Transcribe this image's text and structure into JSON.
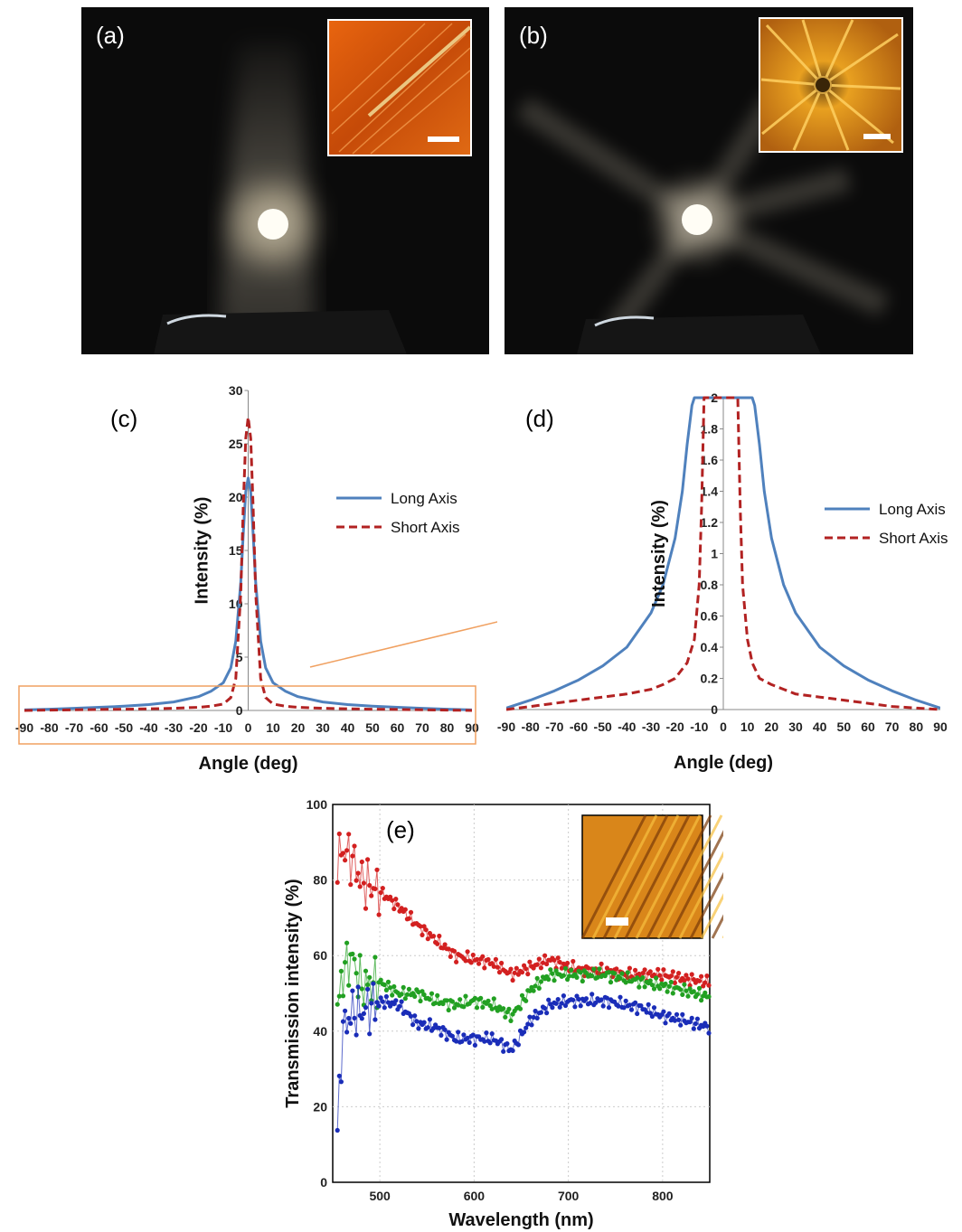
{
  "panels": {
    "a": {
      "label": "(a)"
    },
    "b": {
      "label": "(b)"
    },
    "c": {
      "label": "(c)"
    },
    "d": {
      "label": "(d)"
    },
    "e": {
      "label": "(e)"
    }
  },
  "colors": {
    "long_axis": "#4f81bd",
    "short_axis": "#b22222",
    "zoom_box": "#f0a060",
    "red_series": "#d32020",
    "green_series": "#22a022",
    "blue_series": "#1a2db8"
  },
  "chart_data": [
    {
      "id": "c",
      "type": "line",
      "title": "",
      "xlabel": "Angle (deg)",
      "ylabel": "Intensity (%)",
      "xlim": [
        -90,
        90
      ],
      "ylim": [
        0,
        30
      ],
      "xticks": [
        -90,
        -80,
        -70,
        -60,
        -50,
        -40,
        -30,
        -20,
        -10,
        0,
        10,
        20,
        30,
        40,
        50,
        60,
        70,
        80,
        90
      ],
      "yticks": [
        0,
        5,
        10,
        15,
        20,
        25,
        30
      ],
      "legend_position": "right",
      "series": [
        {
          "name": "Long Axis",
          "style": "solid",
          "x": [
            -90,
            -80,
            -70,
            -60,
            -50,
            -40,
            -30,
            -20,
            -15,
            -10,
            -7,
            -5,
            -3,
            -2,
            -1,
            0,
            1,
            2,
            3,
            5,
            7,
            10,
            15,
            20,
            30,
            40,
            50,
            60,
            70,
            80,
            90
          ],
          "y": [
            0.05,
            0.12,
            0.2,
            0.3,
            0.4,
            0.55,
            0.8,
            1.3,
            1.8,
            2.6,
            4.0,
            6.5,
            12.0,
            16.5,
            20.5,
            21.8,
            20.5,
            16.5,
            12.0,
            6.5,
            4.0,
            2.6,
            1.8,
            1.3,
            0.8,
            0.55,
            0.4,
            0.3,
            0.2,
            0.12,
            0.05
          ]
        },
        {
          "name": "Short Axis",
          "style": "dashed",
          "x": [
            -90,
            -80,
            -70,
            -60,
            -50,
            -40,
            -30,
            -20,
            -15,
            -10,
            -7,
            -5,
            -3,
            -2,
            -1,
            0,
            1,
            2,
            3,
            5,
            7,
            10,
            15,
            20,
            30,
            40,
            50,
            60,
            70,
            80,
            90
          ],
          "y": [
            0.0,
            0.03,
            0.06,
            0.09,
            0.12,
            0.15,
            0.2,
            0.3,
            0.4,
            0.6,
            1.2,
            3.0,
            11.0,
            19.0,
            25.5,
            27.5,
            25.5,
            19.0,
            11.0,
            3.0,
            1.2,
            0.6,
            0.4,
            0.3,
            0.2,
            0.15,
            0.12,
            0.09,
            0.06,
            0.03,
            0.0
          ]
        }
      ]
    },
    {
      "id": "d",
      "type": "line",
      "title": "",
      "xlabel": "Angle (deg)",
      "ylabel": "Intensity (%)",
      "xlim": [
        -90,
        90
      ],
      "ylim": [
        0,
        2
      ],
      "xticks": [
        -90,
        -80,
        -70,
        -60,
        -50,
        -40,
        -30,
        -20,
        -10,
        0,
        10,
        20,
        30,
        40,
        50,
        60,
        70,
        80,
        90
      ],
      "yticks": [
        0,
        0.2,
        0.4,
        0.6,
        0.8,
        1,
        1.2,
        1.4,
        1.6,
        1.8,
        2
      ],
      "legend_position": "right",
      "series": [
        {
          "name": "Long Axis",
          "style": "solid",
          "x": [
            -90,
            -80,
            -70,
            -60,
            -50,
            -40,
            -30,
            -25,
            -20,
            -17,
            -15,
            -13,
            -12,
            12,
            13,
            15,
            17,
            20,
            25,
            30,
            40,
            50,
            60,
            70,
            80,
            90
          ],
          "y": [
            0.01,
            0.06,
            0.12,
            0.19,
            0.28,
            0.4,
            0.62,
            0.8,
            1.1,
            1.4,
            1.7,
            1.95,
            2.0,
            2.0,
            1.95,
            1.7,
            1.4,
            1.1,
            0.8,
            0.62,
            0.4,
            0.28,
            0.19,
            0.12,
            0.06,
            0.01
          ]
        },
        {
          "name": "Short Axis",
          "style": "dashed",
          "x": [
            -90,
            -80,
            -70,
            -60,
            -50,
            -40,
            -30,
            -25,
            -20,
            -15,
            -12,
            -10,
            -9,
            -8,
            6,
            7,
            8,
            10,
            12,
            15,
            20,
            25,
            30,
            40,
            50,
            60,
            70,
            80,
            90
          ],
          "y": [
            0.0,
            0.02,
            0.04,
            0.06,
            0.08,
            0.1,
            0.13,
            0.16,
            0.2,
            0.3,
            0.45,
            0.8,
            1.3,
            2.0,
            2.0,
            1.3,
            0.8,
            0.45,
            0.3,
            0.2,
            0.16,
            0.13,
            0.1,
            0.08,
            0.06,
            0.04,
            0.02,
            0.01,
            0.0
          ]
        }
      ]
    },
    {
      "id": "e",
      "type": "scatter",
      "title": "",
      "xlabel": "Wavelength  (nm)",
      "ylabel": "Transmission  intensity (%)",
      "xlim": [
        450,
        850
      ],
      "ylim": [
        0,
        100
      ],
      "xticks": [
        500,
        600,
        700,
        800
      ],
      "yticks": [
        0,
        20,
        40,
        60,
        80,
        100
      ],
      "grid": true,
      "series": [
        {
          "color": "red",
          "x": [
            455,
            460,
            470,
            480,
            500,
            520,
            540,
            560,
            580,
            600,
            620,
            640,
            660,
            680,
            700,
            720,
            740,
            760,
            780,
            800,
            820,
            850
          ],
          "y": [
            85,
            88,
            86,
            80,
            77,
            73,
            68,
            64,
            60,
            59,
            58,
            55,
            57,
            59,
            57,
            56,
            56,
            55,
            55,
            55,
            54,
            53
          ]
        },
        {
          "color": "green",
          "x": [
            455,
            460,
            470,
            480,
            500,
            520,
            540,
            560,
            580,
            600,
            620,
            640,
            660,
            680,
            700,
            720,
            740,
            760,
            780,
            800,
            820,
            850
          ],
          "y": [
            45,
            55,
            60,
            52,
            53,
            50,
            50,
            48,
            47,
            48,
            47,
            44,
            51,
            55,
            55,
            55,
            55,
            54,
            53,
            52,
            51,
            49
          ]
        },
        {
          "color": "blue",
          "x": [
            455,
            460,
            470,
            480,
            500,
            520,
            540,
            560,
            580,
            600,
            620,
            640,
            660,
            680,
            700,
            720,
            740,
            760,
            780,
            800,
            820,
            850
          ],
          "y": [
            12,
            40,
            45,
            45,
            48,
            47,
            42,
            41,
            38,
            38,
            38,
            35,
            43,
            47,
            48,
            48,
            48,
            47,
            46,
            44,
            43,
            41
          ]
        }
      ]
    }
  ]
}
